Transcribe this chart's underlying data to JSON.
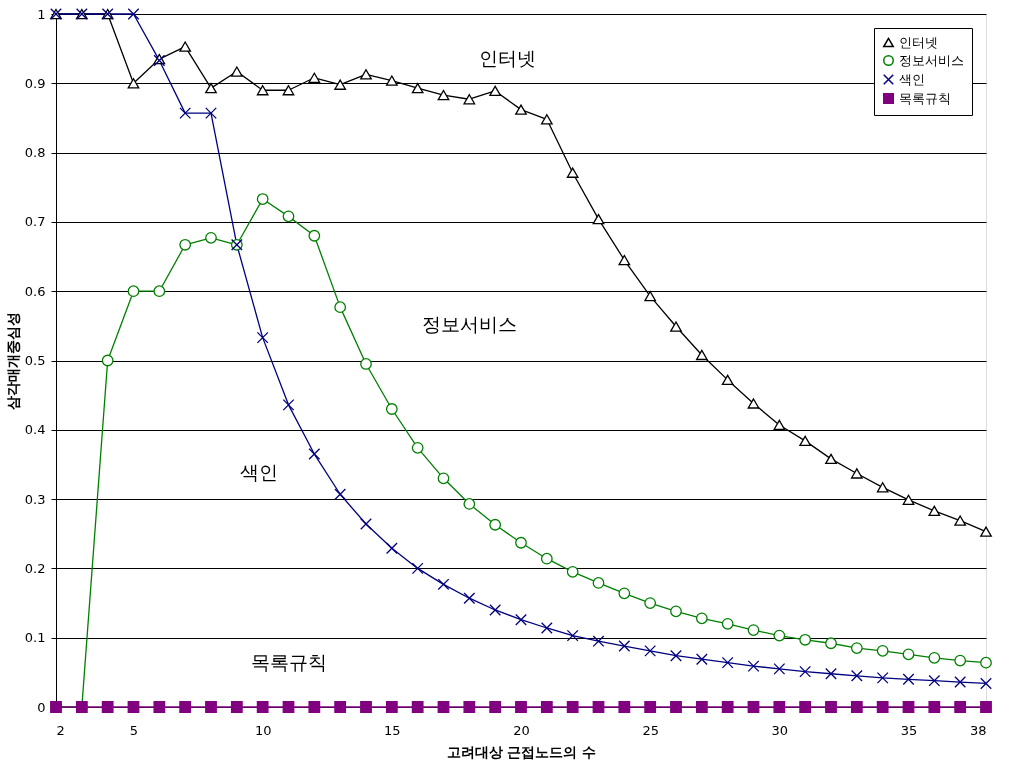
{
  "chart_data": {
    "type": "line",
    "xlabel": "고려대상 근접노드의 수",
    "ylabel": "삼각매개중심성",
    "x": [
      2,
      3,
      4,
      5,
      6,
      7,
      8,
      9,
      10,
      11,
      12,
      13,
      14,
      15,
      16,
      17,
      18,
      19,
      20,
      21,
      22,
      23,
      24,
      25,
      26,
      27,
      28,
      29,
      30,
      31,
      32,
      33,
      34,
      35,
      36,
      37,
      38
    ],
    "xlim": [
      2,
      38
    ],
    "xticks": [
      2,
      5,
      10,
      15,
      20,
      25,
      30,
      35,
      38
    ],
    "ylim": [
      0,
      1
    ],
    "yticks": [
      0,
      0.1,
      0.2,
      0.3,
      0.4,
      0.5,
      0.6,
      0.7,
      0.8,
      0.9,
      1
    ],
    "grid": "y",
    "legend": "top right",
    "line_style": "solid",
    "series": [
      {
        "name": "인터넷",
        "color": "#000000",
        "marker": "triangle",
        "values": [
          1,
          1,
          1,
          0.9,
          0.935,
          0.953,
          0.893,
          0.917,
          0.89,
          0.89,
          0.908,
          0.898,
          0.913,
          0.904,
          0.893,
          0.883,
          0.877,
          0.889,
          0.862,
          0.848,
          0.771,
          0.704,
          0.645,
          0.593,
          0.549,
          0.508,
          0.472,
          0.438,
          0.407,
          0.384,
          0.358,
          0.337,
          0.317,
          0.299,
          0.283,
          0.269,
          0.253
        ]
      },
      {
        "name": "정보서비스",
        "color": "#008000",
        "marker": "circle",
        "values": [
          0,
          0,
          0.5,
          0.6,
          0.6,
          0.667,
          0.677,
          0.667,
          0.733,
          0.708,
          0.68,
          0.577,
          0.495,
          0.43,
          0.374,
          0.33,
          0.293,
          0.263,
          0.237,
          0.214,
          0.195,
          0.179,
          0.164,
          0.15,
          0.138,
          0.128,
          0.12,
          0.111,
          0.103,
          0.097,
          0.092,
          0.085,
          0.081,
          0.076,
          0.071,
          0.067,
          0.064
        ]
      },
      {
        "name": "색인",
        "color": "#000080",
        "marker": "cross",
        "values": [
          1,
          1,
          1,
          1,
          0.933,
          0.857,
          0.857,
          0.667,
          0.533,
          0.436,
          0.365,
          0.307,
          0.264,
          0.229,
          0.2,
          0.177,
          0.157,
          0.14,
          0.126,
          0.114,
          0.103,
          0.095,
          0.088,
          0.081,
          0.074,
          0.069,
          0.064,
          0.059,
          0.055,
          0.051,
          0.048,
          0.045,
          0.042,
          0.04,
          0.038,
          0.036,
          0.034
        ]
      },
      {
        "name": "목록규칙",
        "color": "#800080",
        "marker": "square",
        "values": [
          0,
          0,
          0,
          0,
          0,
          0,
          0,
          0,
          0,
          0,
          0,
          0,
          0,
          0,
          0,
          0,
          0,
          0,
          0,
          0,
          0,
          0,
          0,
          0,
          0,
          0,
          0,
          0,
          0,
          0,
          0,
          0,
          0,
          0,
          0,
          0,
          0
        ]
      }
    ],
    "annotations": [
      "인터넷",
      "정보서비스",
      "색인",
      "목록규칙"
    ]
  }
}
